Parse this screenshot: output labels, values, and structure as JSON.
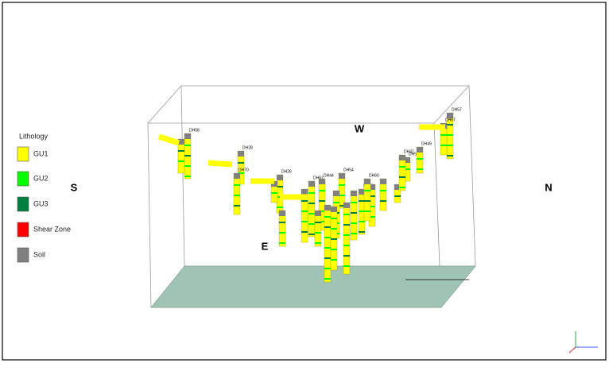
{
  "legend": {
    "title": "Lithology",
    "items": [
      {
        "label": "GU1",
        "color": "#ffff00"
      },
      {
        "label": "GU2",
        "color": "#00ff00"
      },
      {
        "label": "GU3",
        "color": "#008040"
      },
      {
        "label": "Shear Zone",
        "color": "#ff0000"
      },
      {
        "label": "Soil",
        "color": "#808080"
      }
    ]
  },
  "directions": {
    "south": "S",
    "north": "N",
    "west": "W",
    "east": "E"
  },
  "drillholes": [
    "DH58",
    "DH28",
    "DH70",
    "DH26",
    "DH62",
    "DH44",
    "DH54",
    "DH50",
    "DH49",
    "DH56",
    "DH47",
    "DH57",
    "DH67",
    "DH60"
  ]
}
